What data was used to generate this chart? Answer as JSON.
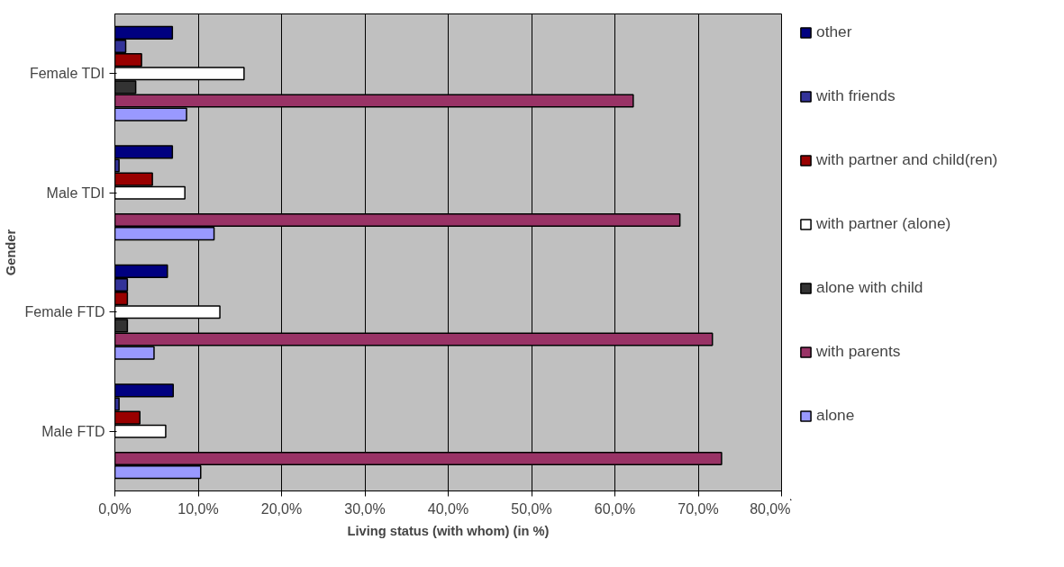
{
  "chart_data": {
    "type": "bar",
    "orientation": "horizontal",
    "xlabel": "Living status (with whom) (in %)",
    "ylabel": "Gender",
    "categories": [
      "Female TDI",
      "Male TDI",
      "Female FTD",
      "Male FTD"
    ],
    "series": [
      {
        "name": "other",
        "color": "#000080",
        "values": [
          6.9,
          6.9,
          6.3,
          7.0
        ]
      },
      {
        "name": "with friends",
        "color": "#333399",
        "values": [
          1.3,
          0.5,
          1.5,
          0.5
        ]
      },
      {
        "name": "with partner and child(ren)",
        "color": "#990000",
        "values": [
          3.2,
          4.5,
          1.5,
          3.0
        ]
      },
      {
        "name": "with partner (alone)",
        "color": "#ffffff",
        "values": [
          15.5,
          8.4,
          12.6,
          6.1
        ]
      },
      {
        "name": "alone with child",
        "color": "#333333",
        "values": [
          2.5,
          null,
          1.5,
          null
        ]
      },
      {
        "name": "with parents",
        "color": "#993366",
        "values": [
          62.2,
          67.8,
          71.7,
          72.8
        ]
      },
      {
        "name": "alone",
        "color": "#9999ff",
        "values": [
          8.6,
          11.9,
          4.7,
          10.3
        ]
      }
    ],
    "xlim": [
      0,
      80
    ],
    "xticks": [
      {
        "value": 0,
        "label": "0,0%"
      },
      {
        "value": 10,
        "label": "10,0%"
      },
      {
        "value": 20,
        "label": "20,0%"
      },
      {
        "value": 30,
        "label": "30,0%"
      },
      {
        "value": 40,
        "label": "40,0%"
      },
      {
        "value": 50,
        "label": "50,0%"
      },
      {
        "value": 60,
        "label": "60,0%"
      },
      {
        "value": 70,
        "label": "70,0%"
      },
      {
        "value": 80,
        "label": "80,0%"
      }
    ],
    "grid": "x",
    "legend": "right"
  }
}
